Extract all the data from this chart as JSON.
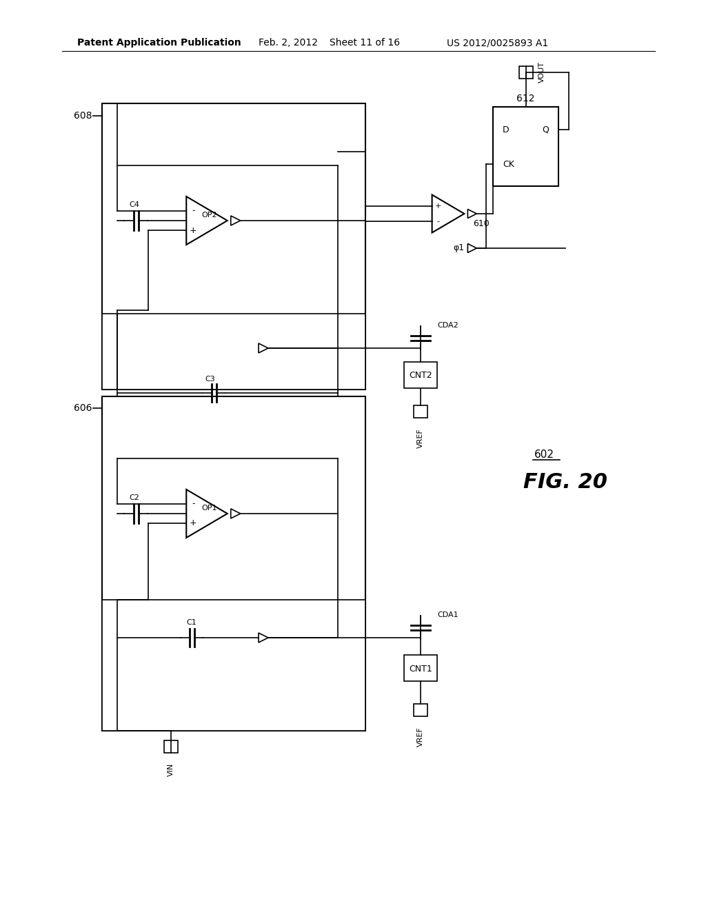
{
  "bg_color": "#ffffff",
  "header_left": "Patent Application Publication",
  "header_date": "Feb. 2, 2012",
  "header_sheet": "Sheet 11 of 16",
  "header_patent": "US 2012/0025893 A1",
  "fig_label": "FIG. 20",
  "label_602": "602",
  "label_606": "606",
  "label_608": "608",
  "label_610": "610",
  "label_612": "612",
  "label_op1": "OP1",
  "label_op2": "OP2",
  "label_c1": "C1",
  "label_c2": "C2",
  "label_c3": "C3",
  "label_c4": "C4",
  "label_cda1": "CDA1",
  "label_cda2": "CDA2",
  "label_cnt1": "CNT1",
  "label_cnt2": "CNT2",
  "label_vin": "VIN",
  "label_vref": "VREF",
  "label_vout": "VOUT",
  "label_phi1": "φ1",
  "label_d": "D",
  "label_q": "Q",
  "label_ck": "CK"
}
